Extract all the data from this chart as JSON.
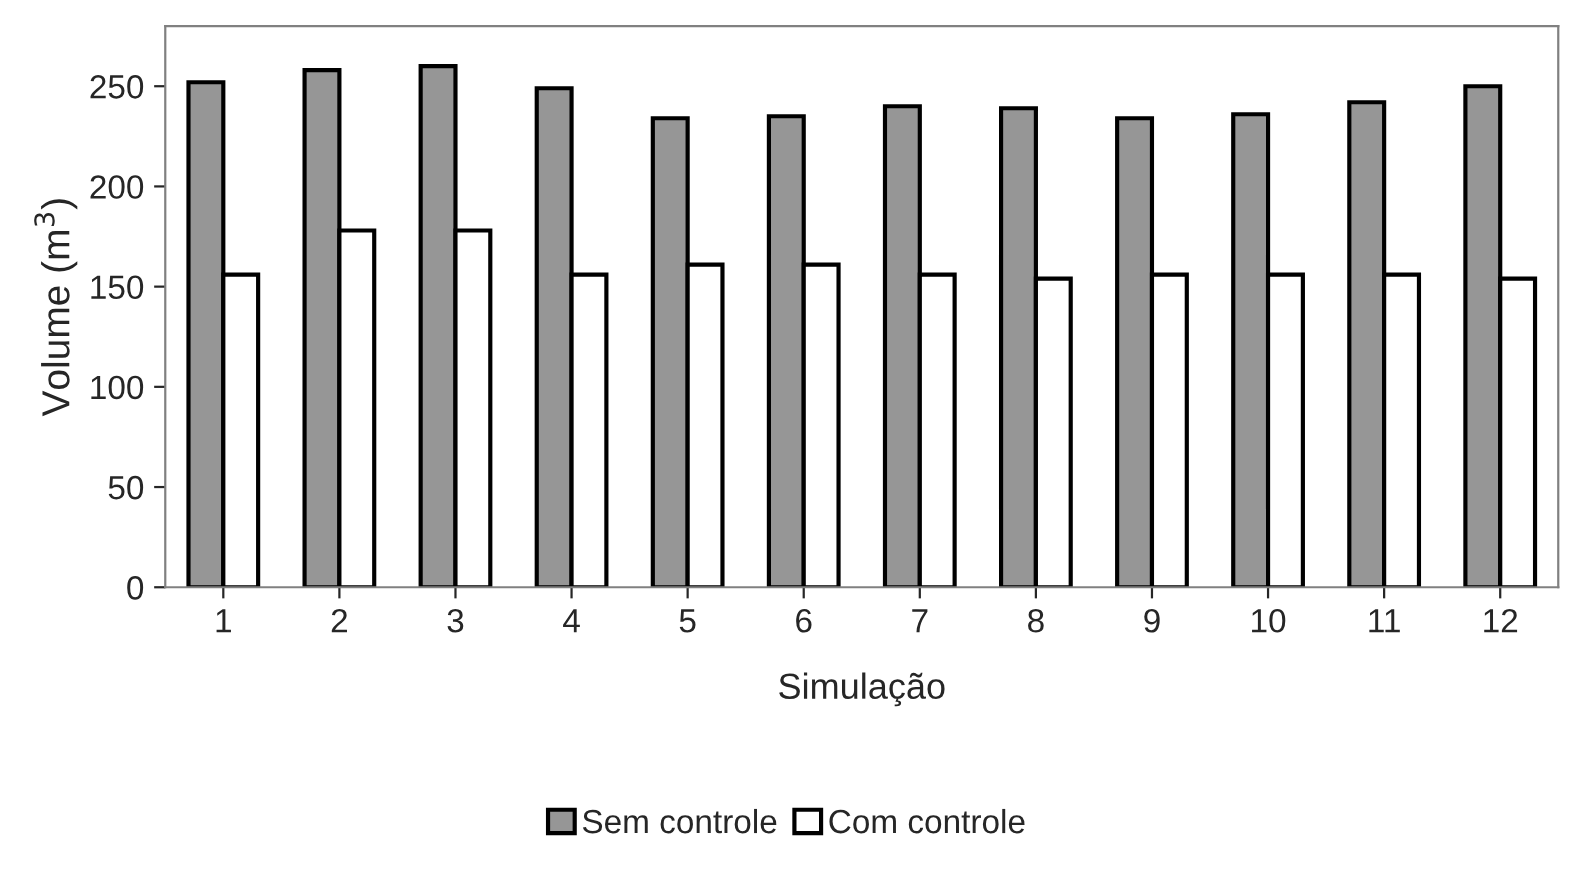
{
  "chart_data": {
    "type": "bar",
    "xlabel": "Simulação",
    "ylabel": "Volume (m$^{3}$)",
    "categories": [
      "1",
      "2",
      "3",
      "4",
      "5",
      "6",
      "7",
      "8",
      "9",
      "10",
      "11",
      "12"
    ],
    "series": [
      {
        "name": "Sem controle",
        "color": "#969696",
        "values": [
          252,
          258,
          260,
          249,
          234,
          235,
          240,
          239,
          234,
          236,
          242,
          250
        ]
      },
      {
        "name": "Com controle",
        "color": "#ffffff",
        "values": [
          156,
          178,
          178,
          156,
          161,
          161,
          156,
          154,
          156,
          156,
          156,
          154
        ]
      }
    ],
    "ylim": [
      0,
      280
    ],
    "yticks": [
      0,
      50,
      100,
      150,
      200,
      250
    ],
    "grid": false,
    "legend": "bottom"
  }
}
